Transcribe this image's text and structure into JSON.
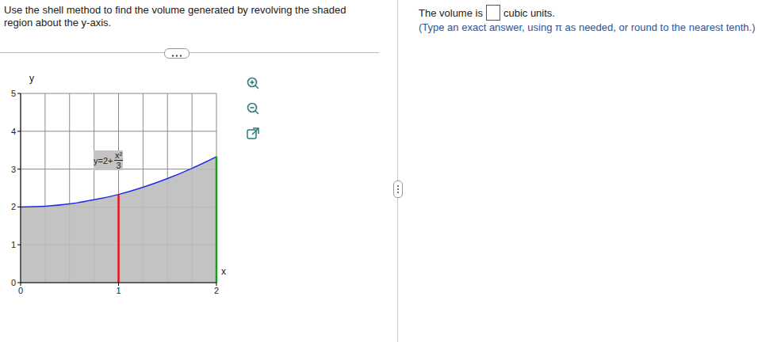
{
  "question": "Use the shell method to find the volume generated by revolving the shaded region about the y-axis.",
  "answer": {
    "prefix": "The volume is",
    "suffix": "cubic units.",
    "hint": "(Type an exact answer, using π as needed, or round to the nearest tenth.)"
  },
  "chart_data": {
    "type": "area",
    "x": [
      0,
      0.25,
      0.5,
      0.75,
      1,
      1.25,
      1.5,
      1.75,
      2
    ],
    "values": [
      2,
      2.02,
      2.08,
      2.19,
      2.33,
      2.52,
      2.75,
      3.02,
      3.33
    ],
    "color": "#1f2fe0",
    "xlabel": "x",
    "ylabel": "y",
    "xlim": [
      0,
      2
    ],
    "ylim": [
      0,
      5
    ],
    "xticks": [
      0,
      1,
      2
    ],
    "yticks": [
      0,
      1,
      2,
      3,
      4,
      5
    ],
    "grid": true,
    "curve_label": {
      "prefix": "y=2+",
      "numerator": "x²",
      "denominator": "3"
    },
    "vertical_lines": [
      {
        "x": 1,
        "y": 2.33,
        "color": "#e8141c"
      },
      {
        "x": 2,
        "y": 3.33,
        "color": "#1a9e1a"
      }
    ]
  }
}
